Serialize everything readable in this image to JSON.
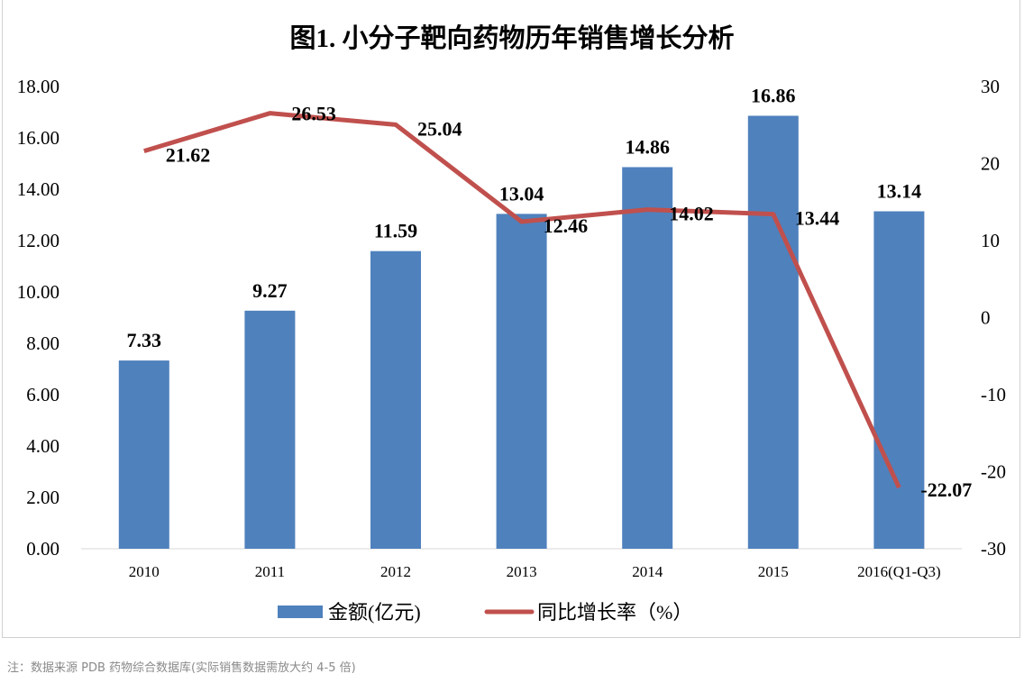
{
  "chart_data": {
    "type": "bar+line",
    "title": "图1. 小分子靶向药物历年销售增长分析",
    "categories": [
      "2010",
      "2011",
      "2012",
      "2013",
      "2014",
      "2015",
      "2016(Q1-Q3)"
    ],
    "series": [
      {
        "name": "金额(亿元)",
        "type": "bar",
        "axis": "left",
        "color": "#4f81bd",
        "values": [
          7.33,
          9.27,
          11.59,
          13.04,
          14.86,
          16.86,
          13.14
        ]
      },
      {
        "name": "同比增长率（%）",
        "type": "line",
        "axis": "right",
        "color": "#c0504d",
        "values": [
          21.62,
          26.53,
          25.04,
          12.46,
          14.02,
          13.44,
          -22.07
        ]
      }
    ],
    "left_axis": {
      "ylim": [
        0,
        18
      ],
      "ticks": [
        "0.00",
        "2.00",
        "4.00",
        "6.00",
        "8.00",
        "10.00",
        "12.00",
        "14.00",
        "16.00",
        "18.00"
      ]
    },
    "right_axis": {
      "ylim": [
        -30,
        30
      ],
      "ticks": [
        "-30",
        "-20",
        "-10",
        "0",
        "10",
        "20",
        "30"
      ]
    },
    "grid": false,
    "legend": "bottom"
  },
  "note": "注：数据来源 PDB 药物综合数据库(实际销售数据需放大约 4-5 倍)"
}
